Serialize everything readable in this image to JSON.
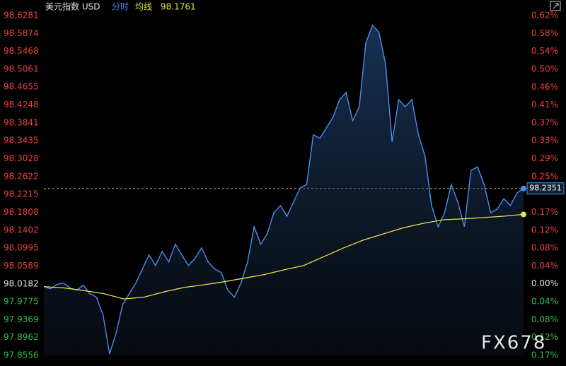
{
  "chart_data": {
    "type": "line",
    "title": "美元指数 USD",
    "mode_label": "分时",
    "average_label": "均线",
    "average_value": "98.1761",
    "current_price_label": "98.2351",
    "current_price": 98.2351,
    "prev_close": 98.0182,
    "watermark": "FX678",
    "ylim": [
      97.8556,
      98.6281
    ],
    "yticks": [
      98.6281,
      98.5874,
      98.5468,
      98.5061,
      98.4655,
      98.4248,
      98.3841,
      98.3435,
      98.3028,
      98.2622,
      98.2215,
      98.1808,
      98.1402,
      98.0995,
      98.0589,
      98.0182,
      97.9775,
      97.9369,
      97.8962,
      97.8556
    ],
    "y2lim": [
      -0.1659,
      0.6222
    ],
    "y2ticks": [
      {
        "value": 0.6222,
        "label": "0.62%"
      },
      {
        "value": 0.5807,
        "label": "0.58%"
      },
      {
        "value": 0.5392,
        "label": "0.54%"
      },
      {
        "value": 0.4977,
        "label": "0.50%"
      },
      {
        "value": 0.4563,
        "label": "0.46%"
      },
      {
        "value": 0.4148,
        "label": "0.41%"
      },
      {
        "value": 0.3733,
        "label": "0.37%"
      },
      {
        "value": 0.3318,
        "label": "0.33%"
      },
      {
        "value": 0.2904,
        "label": "0.29%"
      },
      {
        "value": 0.2489,
        "label": "0.25%"
      },
      {
        "value": 0.1659,
        "label": "0.17%"
      },
      {
        "value": 0.1244,
        "label": "0.12%"
      },
      {
        "value": 0.083,
        "label": "0.08%"
      },
      {
        "value": 0.0415,
        "label": "0.04%"
      },
      {
        "value": 0,
        "label": "0.00%"
      },
      {
        "value": -0.0415,
        "label": "0.04%"
      },
      {
        "value": -0.083,
        "label": "0.08%"
      },
      {
        "value": -0.1244,
        "label": "0.12%"
      },
      {
        "value": -0.1659,
        "label": "0.17%"
      }
    ],
    "grid": false,
    "series": [
      {
        "name": "分时",
        "color": "#4a8ef0",
        "values": [
          98.012,
          98.007,
          98.017,
          98.02,
          98.009,
          98.004,
          98.015,
          97.996,
          97.988,
          97.948,
          97.859,
          97.907,
          97.972,
          97.996,
          98.02,
          98.052,
          98.084,
          98.06,
          98.092,
          98.068,
          98.108,
          98.084,
          98.06,
          98.076,
          98.1,
          98.068,
          98.052,
          98.044,
          98.004,
          97.988,
          98.02,
          98.068,
          98.148,
          98.108,
          98.132,
          98.18,
          98.196,
          98.172,
          98.204,
          98.236,
          98.244,
          98.357,
          98.349,
          98.373,
          98.397,
          98.437,
          98.453,
          98.389,
          98.421,
          98.566,
          98.606,
          98.59,
          98.518,
          98.341,
          98.437,
          98.421,
          98.437,
          98.357,
          98.309,
          98.196,
          98.148,
          98.18,
          98.244,
          98.204,
          98.148,
          98.276,
          98.284,
          98.244,
          98.18,
          98.188,
          98.212,
          98.196,
          98.225,
          98.235
        ]
      },
      {
        "name": "均线",
        "color": "#e8e04a",
        "values": [
          98.012,
          98.009,
          98.003,
          97.996,
          97.984,
          97.988,
          98.0,
          98.01,
          98.016,
          98.023,
          98.031,
          98.039,
          98.05,
          98.06,
          98.08,
          98.1,
          98.118,
          98.132,
          98.146,
          98.156,
          98.164,
          98.166,
          98.169,
          98.172,
          98.1761
        ]
      }
    ]
  }
}
